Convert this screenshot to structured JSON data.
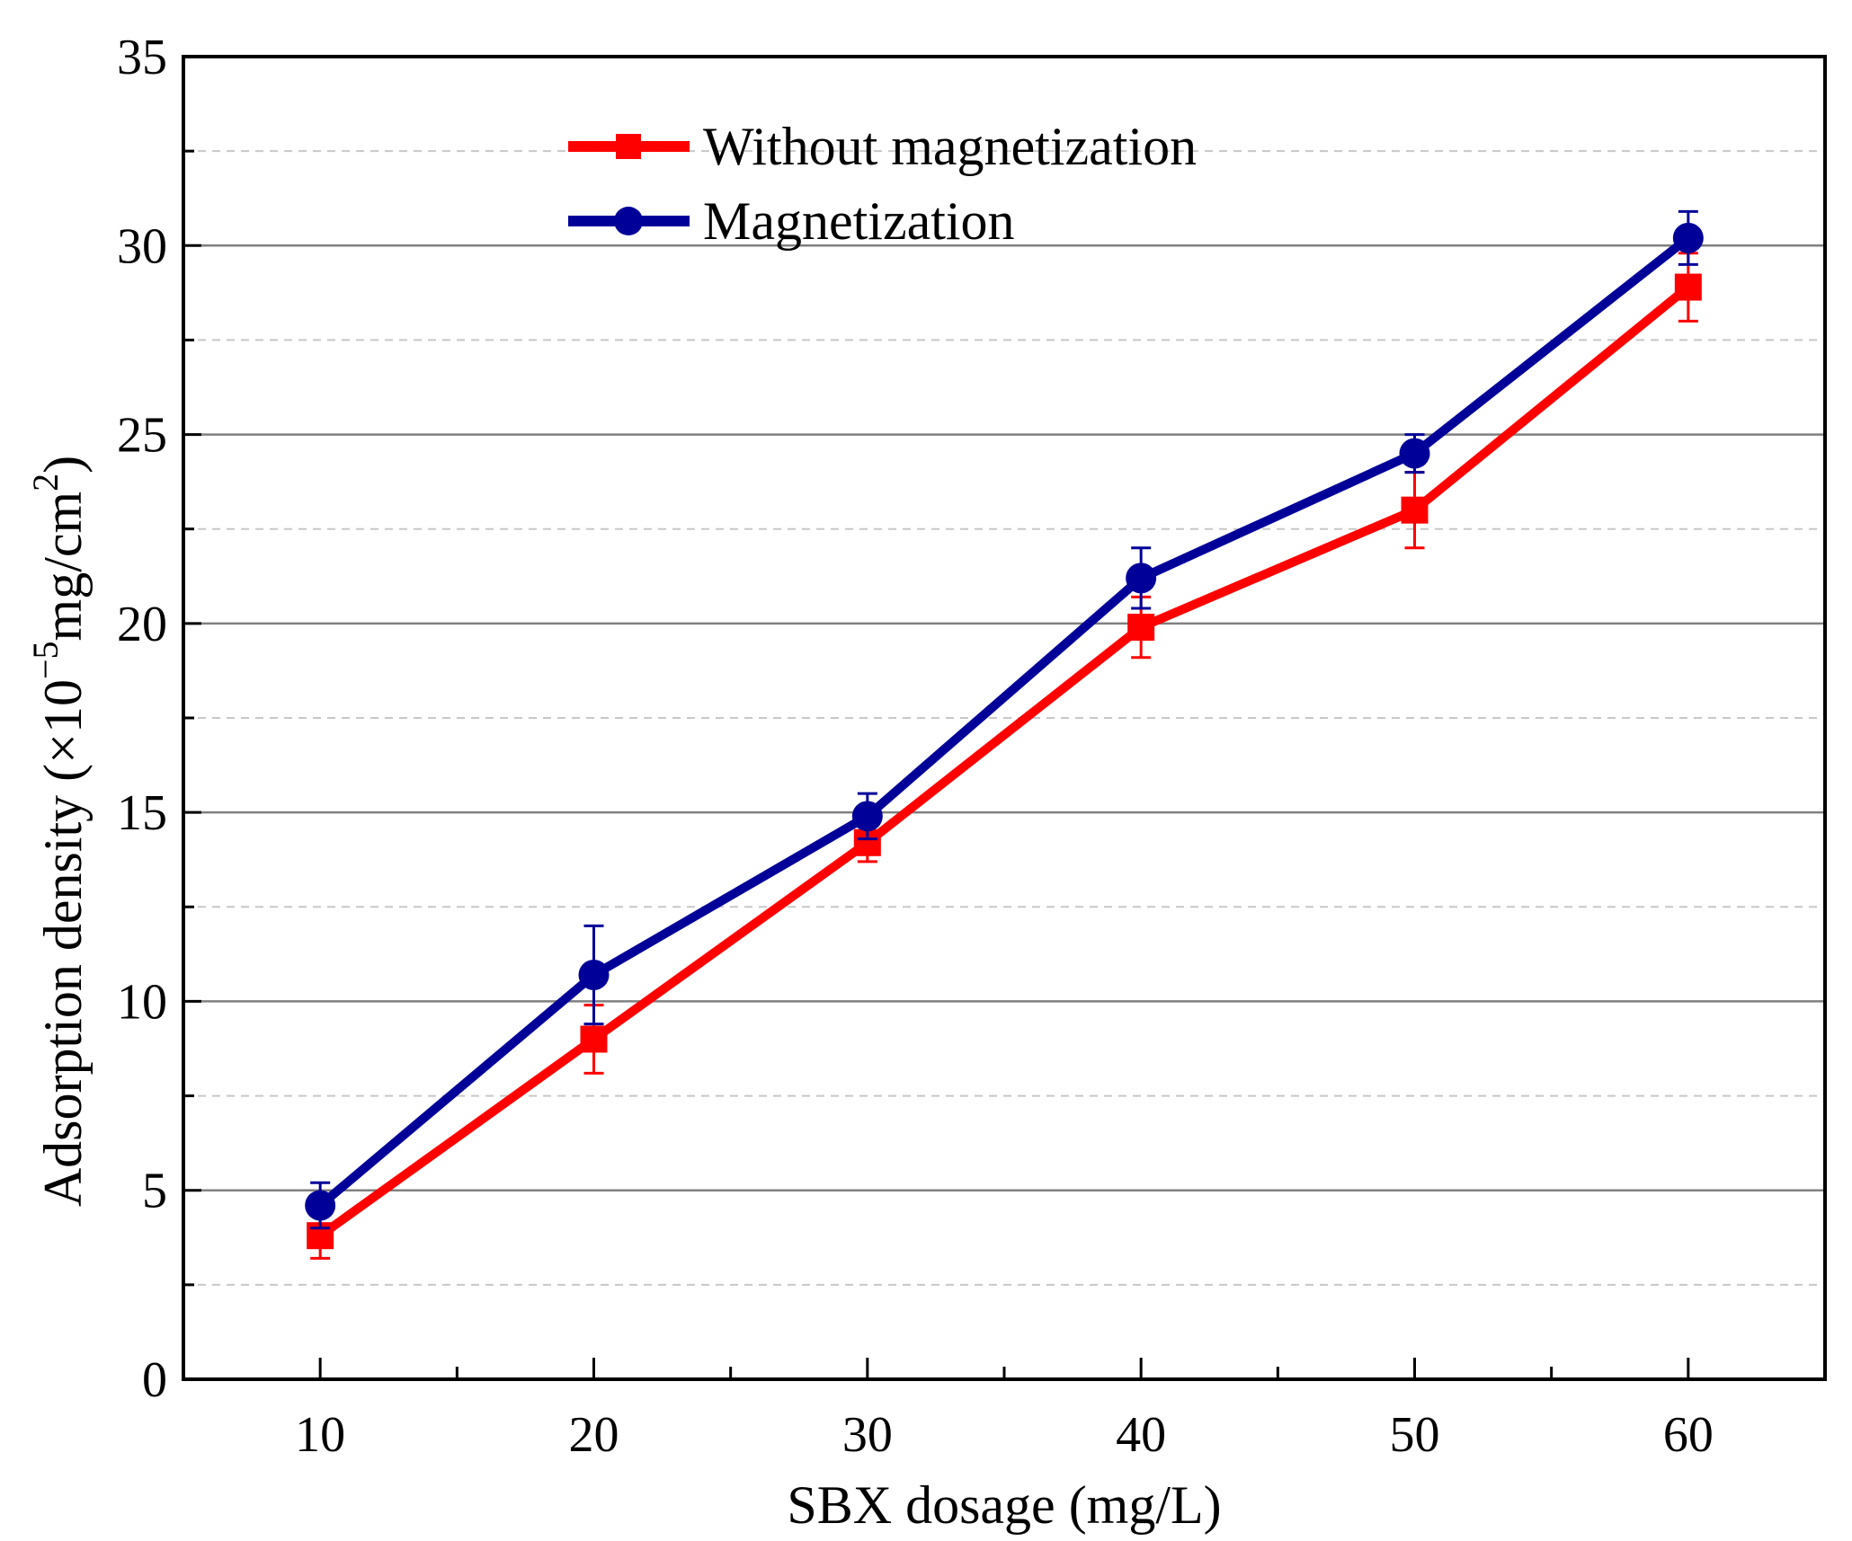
{
  "chart_data": {
    "type": "line",
    "title": "",
    "xlabel": "SBX dosage (mg/L)",
    "ylabel": {
      "prefix": "Adsorption density (×10",
      "exp": "−5",
      "mid": "mg/cm",
      "exp2": "2",
      "suffix": ")"
    },
    "x": [
      10,
      20,
      30,
      40,
      50,
      60
    ],
    "xlim": [
      5,
      65
    ],
    "ylim": [
      0,
      35
    ],
    "xticks": [
      "10",
      "20",
      "30",
      "40",
      "50",
      "60"
    ],
    "yticks": [
      "0",
      "5",
      "10",
      "15",
      "20",
      "25",
      "30",
      "35"
    ],
    "grid": true,
    "legend_position": "top-left",
    "series": [
      {
        "name": "Without magnetization",
        "color": "#ff0000",
        "marker": "square",
        "values": [
          3.8,
          9.0,
          14.2,
          19.9,
          23.0,
          28.9
        ],
        "errors": [
          0.6,
          0.9,
          0.5,
          0.8,
          1.0,
          0.9
        ]
      },
      {
        "name": "Magnetization",
        "color": "#000099",
        "marker": "circle",
        "values": [
          4.6,
          10.7,
          14.9,
          21.2,
          24.5,
          30.2
        ],
        "errors": [
          0.6,
          1.3,
          0.6,
          0.8,
          0.5,
          0.7
        ]
      }
    ]
  }
}
